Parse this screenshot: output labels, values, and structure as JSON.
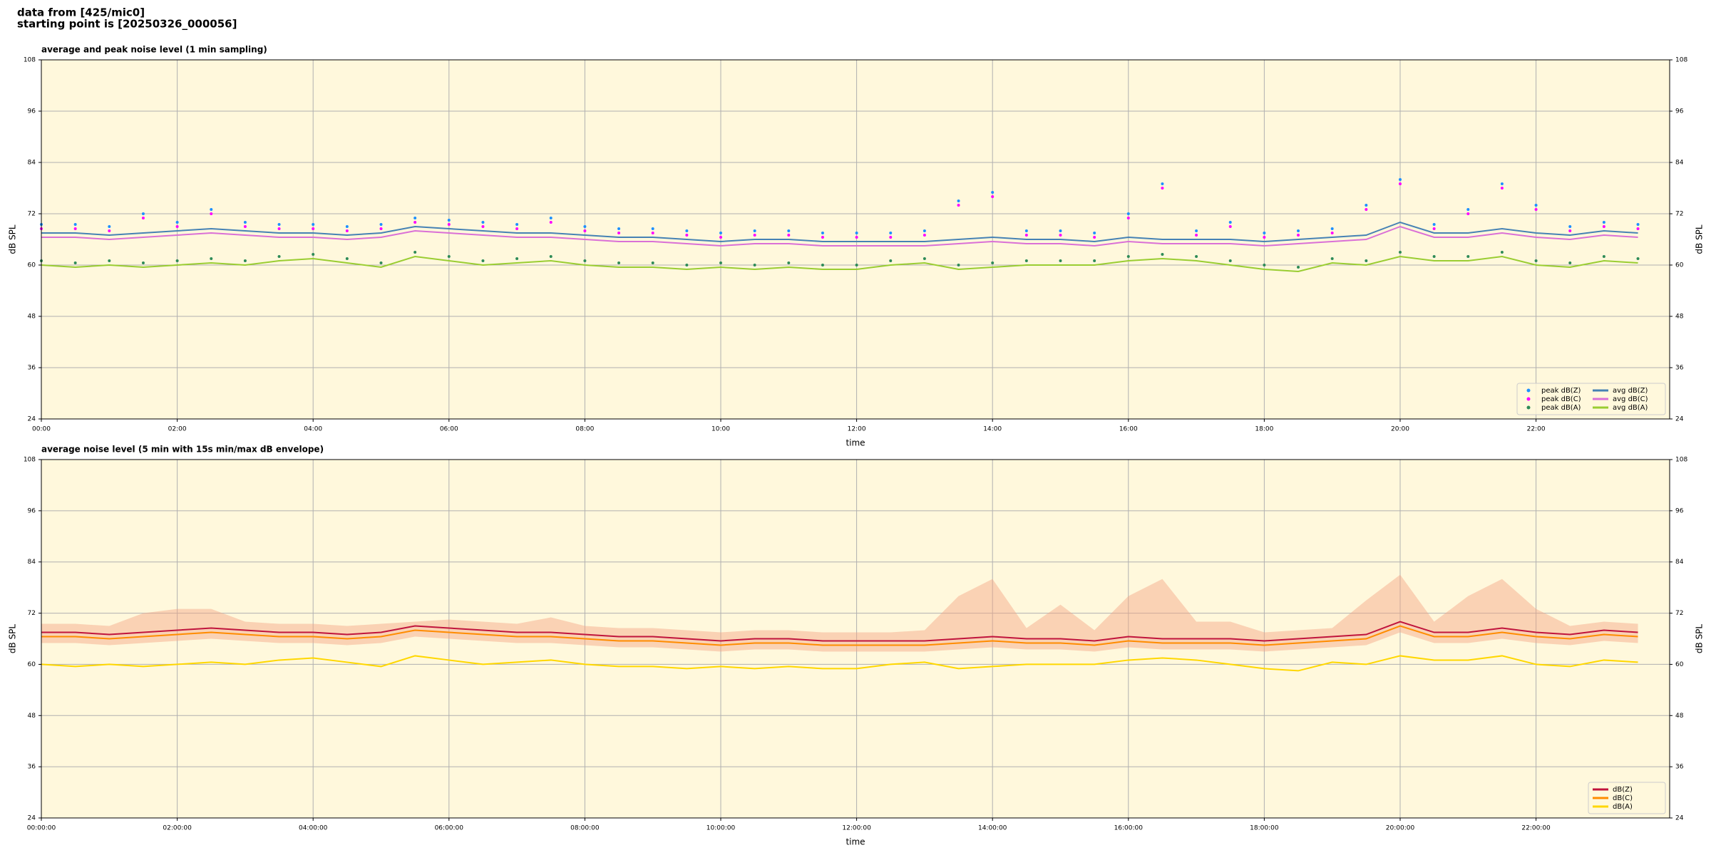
{
  "header": {
    "lines": [
      "data from [425/mic0]",
      "starting point is [20250326_000056]"
    ]
  },
  "chart_data": [
    {
      "type": "line",
      "title": "average and peak noise level (1 min sampling)",
      "xlabel": "time",
      "ylabel": "dB SPL",
      "x": [
        "00:00",
        "00:30",
        "01:00",
        "01:30",
        "02:00",
        "02:30",
        "03:00",
        "03:30",
        "04:00",
        "04:30",
        "05:00",
        "05:30",
        "06:00",
        "06:30",
        "07:00",
        "07:30",
        "08:00",
        "08:30",
        "09:00",
        "09:30",
        "10:00",
        "10:30",
        "11:00",
        "11:30",
        "12:00",
        "12:30",
        "13:00",
        "13:30",
        "14:00",
        "14:30",
        "15:00",
        "15:30",
        "16:00",
        "16:30",
        "17:00",
        "17:30",
        "18:00",
        "18:30",
        "19:00",
        "19:30",
        "20:00",
        "20:30",
        "21:00",
        "21:30",
        "22:00",
        "22:30",
        "23:00",
        "23:30"
      ],
      "xlim": [
        "00:00",
        "23:58"
      ],
      "xticks": [
        "00:00",
        "02:00",
        "04:00",
        "06:00",
        "08:00",
        "10:00",
        "12:00",
        "14:00",
        "16:00",
        "18:00",
        "20:00",
        "22:00"
      ],
      "ylim": [
        24,
        108
      ],
      "yticks": [
        24,
        36,
        48,
        60,
        72,
        84,
        96,
        108
      ],
      "grid": true,
      "background": "#fff8dc",
      "legend": "lower right",
      "legend_columns": 2,
      "series": [
        {
          "name": "peak dB(Z)",
          "color": "#1e90ff",
          "mode": "markers",
          "values": [
            69.5,
            69.5,
            69,
            72,
            70,
            73,
            70,
            69.5,
            69.5,
            69,
            69.5,
            71,
            70.5,
            70,
            69.5,
            71,
            69,
            68.5,
            68.5,
            68,
            67.5,
            68,
            68,
            67.5,
            67.5,
            67.5,
            68,
            75,
            77,
            68,
            68,
            67.5,
            72,
            79,
            68,
            70,
            67.5,
            68,
            68.5,
            74,
            80,
            69.5,
            73,
            79,
            74,
            69,
            70,
            69.5
          ]
        },
        {
          "name": "peak dB(C)",
          "color": "#ff00ff",
          "mode": "markers",
          "values": [
            68.5,
            68.5,
            68,
            71,
            69,
            72,
            69,
            68.5,
            68.5,
            68,
            68.5,
            70,
            69.5,
            69,
            68.5,
            70,
            68,
            67.5,
            67.5,
            67,
            66.5,
            67,
            67,
            66.5,
            66.5,
            66.5,
            67,
            74,
            76,
            67,
            67,
            66.5,
            71,
            78,
            67,
            69,
            66.5,
            67,
            67.5,
            73,
            79,
            68.5,
            72,
            78,
            73,
            68,
            69,
            68.5
          ]
        },
        {
          "name": "peak dB(A)",
          "color": "#2e8b57",
          "mode": "markers",
          "values": [
            61,
            60.5,
            61,
            60.5,
            61,
            61.5,
            61,
            62,
            62.5,
            61.5,
            60.5,
            63,
            62,
            61,
            61.5,
            62,
            61,
            60.5,
            60.5,
            60,
            60.5,
            60,
            60.5,
            60,
            60,
            61,
            61.5,
            60,
            60.5,
            61,
            61,
            61,
            62,
            62.5,
            62,
            61,
            60,
            59.5,
            61.5,
            61,
            63,
            62,
            62,
            63,
            61,
            60.5,
            62,
            61.5
          ]
        },
        {
          "name": "avg dB(Z)",
          "color": "#4682b4",
          "mode": "lines",
          "values": [
            67.5,
            67.5,
            67,
            67.5,
            68,
            68.5,
            68,
            67.5,
            67.5,
            67,
            67.5,
            69,
            68.5,
            68,
            67.5,
            67.5,
            67,
            66.5,
            66.5,
            66,
            65.5,
            66,
            66,
            65.5,
            65.5,
            65.5,
            65.5,
            66,
            66.5,
            66,
            66,
            65.5,
            66.5,
            66,
            66,
            66,
            65.5,
            66,
            66.5,
            67,
            70,
            67.5,
            67.5,
            68.5,
            67.5,
            67,
            68,
            67.5
          ]
        },
        {
          "name": "avg dB(C)",
          "color": "#da70d6",
          "mode": "lines",
          "values": [
            66.5,
            66.5,
            66,
            66.5,
            67,
            67.5,
            67,
            66.5,
            66.5,
            66,
            66.5,
            68,
            67.5,
            67,
            66.5,
            66.5,
            66,
            65.5,
            65.5,
            65,
            64.5,
            65,
            65,
            64.5,
            64.5,
            64.5,
            64.5,
            65,
            65.5,
            65,
            65,
            64.5,
            65.5,
            65,
            65,
            65,
            64.5,
            65,
            65.5,
            66,
            69,
            66.5,
            66.5,
            67.5,
            66.5,
            66,
            67,
            66.5
          ]
        },
        {
          "name": "avg dB(A)",
          "color": "#9acd32",
          "mode": "lines",
          "values": [
            60,
            59.5,
            60,
            59.5,
            60,
            60.5,
            60,
            61,
            61.5,
            60.5,
            59.5,
            62,
            61,
            60,
            60.5,
            61,
            60,
            59.5,
            59.5,
            59,
            59.5,
            59,
            59.5,
            59,
            59,
            60,
            60.5,
            59,
            59.5,
            60,
            60,
            60,
            61,
            61.5,
            61,
            60,
            59,
            58.5,
            60.5,
            60,
            62,
            61,
            61,
            62,
            60,
            59.5,
            61,
            60.5
          ]
        }
      ]
    },
    {
      "type": "line",
      "title": "average noise level (5 min with 15s min/max dB envelope)",
      "xlabel": "time",
      "ylabel": "dB SPL",
      "x": [
        "00:00:00",
        "00:30:00",
        "01:00:00",
        "01:30:00",
        "02:00:00",
        "02:30:00",
        "03:00:00",
        "03:30:00",
        "04:00:00",
        "04:30:00",
        "05:00:00",
        "05:30:00",
        "06:00:00",
        "06:30:00",
        "07:00:00",
        "07:30:00",
        "08:00:00",
        "08:30:00",
        "09:00:00",
        "09:30:00",
        "10:00:00",
        "10:30:00",
        "11:00:00",
        "11:30:00",
        "12:00:00",
        "12:30:00",
        "13:00:00",
        "13:30:00",
        "14:00:00",
        "14:30:00",
        "15:00:00",
        "15:30:00",
        "16:00:00",
        "16:30:00",
        "17:00:00",
        "17:30:00",
        "18:00:00",
        "18:30:00",
        "19:00:00",
        "19:30:00",
        "20:00:00",
        "20:30:00",
        "21:00:00",
        "21:30:00",
        "22:00:00",
        "22:30:00",
        "23:00:00",
        "23:30:00"
      ],
      "xlim": [
        "00:00:00",
        "23:58:00"
      ],
      "xticks": [
        "00:00:00",
        "02:00:00",
        "04:00:00",
        "06:00:00",
        "08:00:00",
        "10:00:00",
        "12:00:00",
        "14:00:00",
        "16:00:00",
        "18:00:00",
        "20:00:00",
        "22:00:00"
      ],
      "ylim": [
        24,
        108
      ],
      "yticks": [
        24,
        36,
        48,
        60,
        72,
        84,
        96,
        108
      ],
      "grid": true,
      "background": "#fff8dc",
      "legend": "lower right",
      "legend_columns": 1,
      "envelope": {
        "color": "#f4a582",
        "lower": [
          65,
          65,
          64.5,
          65,
          65.5,
          66,
          65.5,
          65,
          65,
          64.5,
          65,
          66.5,
          66,
          65.5,
          65,
          65,
          64.5,
          64,
          64,
          63.5,
          63,
          63.5,
          63.5,
          63,
          63,
          63,
          63,
          63.5,
          64,
          63.5,
          63.5,
          63,
          64,
          63.5,
          63.5,
          63.5,
          63,
          63.5,
          64,
          64.5,
          67.5,
          65,
          65,
          66,
          65,
          64.5,
          65.5,
          65
        ],
        "upper": [
          69.5,
          69.5,
          69,
          72,
          73,
          73,
          70,
          69.5,
          69.5,
          69,
          69.5,
          70,
          70.5,
          70,
          69.5,
          71,
          69,
          68.5,
          68.5,
          68,
          67.5,
          68,
          68,
          67.5,
          67.5,
          67.5,
          68,
          76,
          80,
          68.5,
          74,
          68,
          76,
          80,
          70,
          70,
          67.5,
          68,
          68.5,
          75,
          81,
          70,
          76,
          80,
          73,
          69,
          70,
          69.5
        ]
      },
      "series": [
        {
          "name": "dB(Z)",
          "color": "#c0143c",
          "mode": "lines",
          "values": [
            67.5,
            67.5,
            67,
            67.5,
            68,
            68.5,
            68,
            67.5,
            67.5,
            67,
            67.5,
            69,
            68.5,
            68,
            67.5,
            67.5,
            67,
            66.5,
            66.5,
            66,
            65.5,
            66,
            66,
            65.5,
            65.5,
            65.5,
            65.5,
            66,
            66.5,
            66,
            66,
            65.5,
            66.5,
            66,
            66,
            66,
            65.5,
            66,
            66.5,
            67,
            70,
            67.5,
            67.5,
            68.5,
            67.5,
            67,
            68,
            67.5
          ]
        },
        {
          "name": "dB(C)",
          "color": "#ff8c00",
          "mode": "lines",
          "values": [
            66.5,
            66.5,
            66,
            66.5,
            67,
            67.5,
            67,
            66.5,
            66.5,
            66,
            66.5,
            68,
            67.5,
            67,
            66.5,
            66.5,
            66,
            65.5,
            65.5,
            65,
            64.5,
            65,
            65,
            64.5,
            64.5,
            64.5,
            64.5,
            65,
            65.5,
            65,
            65,
            64.5,
            65.5,
            65,
            65,
            65,
            64.5,
            65,
            65.5,
            66,
            69,
            66.5,
            66.5,
            67.5,
            66.5,
            66,
            67,
            66.5
          ]
        },
        {
          "name": "dB(A)",
          "color": "#ffd700",
          "mode": "lines",
          "values": [
            60,
            59.5,
            60,
            59.5,
            60,
            60.5,
            60,
            61,
            61.5,
            60.5,
            59.5,
            62,
            61,
            60,
            60.5,
            61,
            60,
            59.5,
            59.5,
            59,
            59.5,
            59,
            59.5,
            59,
            59,
            60,
            60.5,
            59,
            59.5,
            60,
            60,
            60,
            61,
            61.5,
            61,
            60,
            59,
            58.5,
            60.5,
            60,
            62,
            61,
            61,
            62,
            60,
            59.5,
            61,
            60.5
          ]
        }
      ]
    }
  ]
}
